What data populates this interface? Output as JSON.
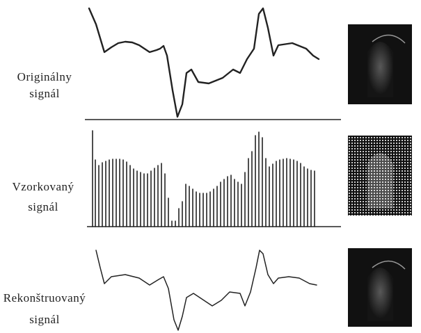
{
  "rows": [
    {
      "label": [
        "Originálny",
        "signál"
      ]
    },
    {
      "label": [
        "Vzorkovaný",
        "signál"
      ]
    },
    {
      "label": [
        "Rekonštruovaný",
        "signál"
      ]
    }
  ]
}
